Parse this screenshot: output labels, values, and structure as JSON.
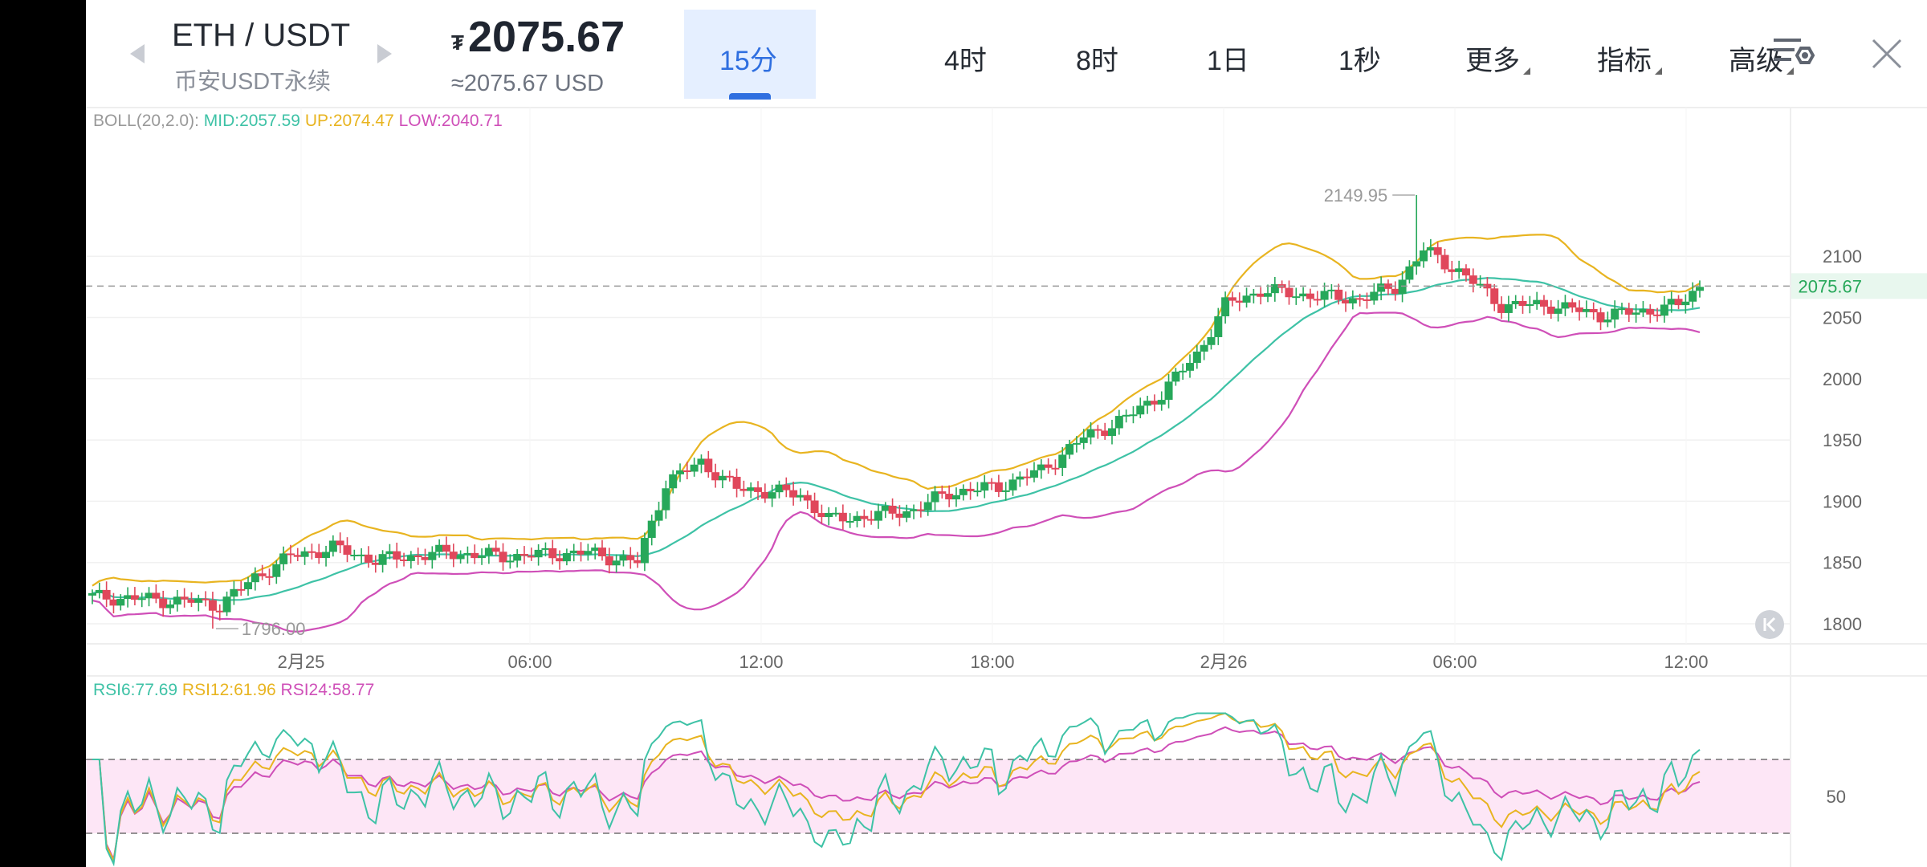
{
  "header": {
    "symbol": "ETH / USDT",
    "market": "币安USDT永续",
    "currency_sign": "₮",
    "price": "2075.67",
    "price_usd": "≈2075.67 USD",
    "tabs": [
      {
        "label": "15分",
        "active": true
      },
      {
        "label": "4时"
      },
      {
        "label": "8时"
      },
      {
        "label": "1日"
      },
      {
        "label": "1秒"
      },
      {
        "label": "更多",
        "dropdown": true
      },
      {
        "label": "指标",
        "dropdown": true
      },
      {
        "label": "高级",
        "dropdown": true
      }
    ],
    "icons": [
      "chart-settings-icon",
      "close-icon"
    ]
  },
  "boll": {
    "name": "BOLL(20,2.0):",
    "mid": "MID:2057.59",
    "up": "UP:2074.47",
    "low": "LOW:2040.71",
    "colors": {
      "mid": "#3ec2a6",
      "up": "#e8b420",
      "low": "#cf4fb8",
      "name": "#999999"
    }
  },
  "rsi": {
    "rsi6": "RSI6:77.69",
    "rsi12": "RSI12:61.96",
    "rsi24": "RSI24:58.77",
    "colors": {
      "rsi6": "#3ec2a6",
      "rsi12": "#e8b420",
      "rsi24": "#cf4fb8"
    }
  },
  "colors": {
    "up": "#27a85a",
    "down": "#e0475b",
    "last_price_tag": "#e8f7ee",
    "rsi_band": "#fde6f6"
  },
  "chart_data": [
    {
      "type": "candlestick",
      "x_ticks": [
        "2月25",
        "06:00",
        "12:00",
        "18:00",
        "2月26",
        "06:00",
        "12:00"
      ],
      "y_ticks": [
        1800,
        1850,
        1900,
        1950,
        2000,
        2050,
        2100
      ],
      "ylim": [
        1790,
        2172
      ],
      "last_price": "2075.67",
      "high_label": "2149.95",
      "low_label": "1796.00",
      "ohlc_anchors": [
        {
          "x": 0,
          "close": 1822
        },
        {
          "x": 8,
          "close": 1820
        },
        {
          "x": 14,
          "close": 1818
        },
        {
          "x": 18,
          "close": 1815
        },
        {
          "x": 23,
          "close": 1838
        },
        {
          "x": 28,
          "close": 1855
        },
        {
          "x": 34,
          "close": 1862
        },
        {
          "x": 40,
          "close": 1852
        },
        {
          "x": 50,
          "close": 1858
        },
        {
          "x": 58,
          "close": 1855
        },
        {
          "x": 70,
          "close": 1858
        },
        {
          "x": 77,
          "close": 1850
        },
        {
          "x": 81,
          "close": 1915
        },
        {
          "x": 86,
          "close": 1932
        },
        {
          "x": 91,
          "close": 1910
        },
        {
          "x": 96,
          "close": 1908
        },
        {
          "x": 100,
          "close": 1905
        },
        {
          "x": 104,
          "close": 1885
        },
        {
          "x": 110,
          "close": 1888
        },
        {
          "x": 116,
          "close": 1893
        },
        {
          "x": 121,
          "close": 1907
        },
        {
          "x": 128,
          "close": 1912
        },
        {
          "x": 134,
          "close": 1925
        },
        {
          "x": 140,
          "close": 1952
        },
        {
          "x": 146,
          "close": 1968
        },
        {
          "x": 151,
          "close": 1988
        },
        {
          "x": 156,
          "close": 2020
        },
        {
          "x": 160,
          "close": 2060
        },
        {
          "x": 165,
          "close": 2072
        },
        {
          "x": 172,
          "close": 2068
        },
        {
          "x": 179,
          "close": 2065
        },
        {
          "x": 184,
          "close": 2075
        },
        {
          "x": 188,
          "close": 2105
        },
        {
          "x": 193,
          "close": 2088
        },
        {
          "x": 199,
          "close": 2060
        },
        {
          "x": 206,
          "close": 2060
        },
        {
          "x": 213,
          "close": 2052
        },
        {
          "x": 218,
          "close": 2054
        },
        {
          "x": 224,
          "close": 2060
        },
        {
          "x": 227,
          "close": 2076
        }
      ]
    },
    {
      "type": "line",
      "name": "RSI",
      "y_ticks": [
        50
      ],
      "band": [
        30,
        70
      ]
    }
  ]
}
